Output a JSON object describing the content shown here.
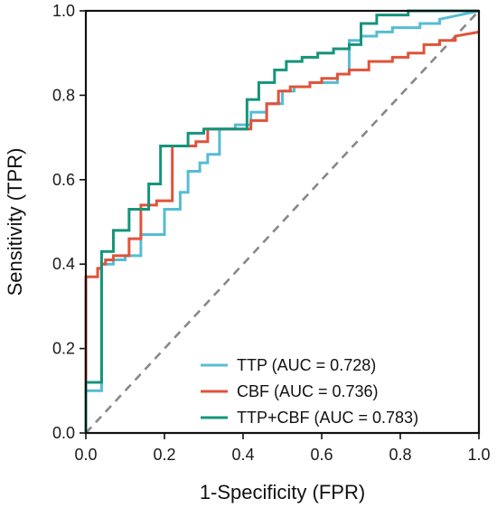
{
  "chart_data": {
    "type": "line",
    "title": "",
    "xlabel": "1-Specificity (FPR)",
    "ylabel": "Sensitivity (TPR)",
    "xlim": [
      0.0,
      1.0
    ],
    "ylim": [
      0.0,
      1.0
    ],
    "x_ticks": [
      "0.0",
      "0.2",
      "0.4",
      "0.6",
      "0.8",
      "1.0"
    ],
    "y_ticks": [
      "0.0",
      "0.2",
      "0.4",
      "0.6",
      "0.8",
      "1.0"
    ],
    "grid": false,
    "legend_position": "bottom-right",
    "reference_line": {
      "x": [
        0.0,
        1.0
      ],
      "y": [
        0.0,
        1.0
      ],
      "color": "#888888",
      "style": "dashed"
    },
    "series": [
      {
        "name": "TTP (AUC = 0.728)",
        "color": "#56bcd6",
        "x": [
          0.0,
          0.0,
          0.04,
          0.04,
          0.07,
          0.07,
          0.1,
          0.1,
          0.14,
          0.14,
          0.2,
          0.2,
          0.24,
          0.24,
          0.26,
          0.26,
          0.29,
          0.29,
          0.31,
          0.31,
          0.34,
          0.34,
          0.38,
          0.38,
          0.42,
          0.42,
          0.46,
          0.46,
          0.5,
          0.5,
          0.53,
          0.53,
          0.57,
          0.57,
          0.64,
          0.64,
          0.67,
          0.67,
          0.7,
          0.7,
          0.74,
          0.74,
          0.78,
          0.78,
          0.85,
          0.85,
          0.9,
          0.9,
          1.0
        ],
        "y": [
          0.0,
          0.1,
          0.1,
          0.4,
          0.4,
          0.41,
          0.41,
          0.42,
          0.42,
          0.47,
          0.47,
          0.53,
          0.53,
          0.57,
          0.57,
          0.62,
          0.62,
          0.64,
          0.64,
          0.66,
          0.66,
          0.72,
          0.72,
          0.73,
          0.73,
          0.76,
          0.76,
          0.78,
          0.78,
          0.81,
          0.81,
          0.82,
          0.82,
          0.83,
          0.83,
          0.85,
          0.85,
          0.93,
          0.93,
          0.94,
          0.94,
          0.95,
          0.95,
          0.96,
          0.96,
          0.97,
          0.97,
          0.98,
          1.0
        ]
      },
      {
        "name": "CBF (AUC = 0.736)",
        "color": "#e0533a",
        "x": [
          0.0,
          0.0,
          0.03,
          0.03,
          0.04,
          0.04,
          0.05,
          0.05,
          0.07,
          0.07,
          0.11,
          0.11,
          0.14,
          0.14,
          0.18,
          0.18,
          0.22,
          0.22,
          0.28,
          0.28,
          0.31,
          0.31,
          0.42,
          0.42,
          0.46,
          0.46,
          0.49,
          0.49,
          0.52,
          0.52,
          0.57,
          0.57,
          0.6,
          0.6,
          0.64,
          0.64,
          0.67,
          0.67,
          0.72,
          0.72,
          0.78,
          0.78,
          0.82,
          0.82,
          0.86,
          0.86,
          0.9,
          0.9,
          0.94,
          0.94,
          1.0
        ],
        "y": [
          0.0,
          0.37,
          0.37,
          0.39,
          0.39,
          0.4,
          0.4,
          0.41,
          0.41,
          0.42,
          0.42,
          0.46,
          0.46,
          0.54,
          0.54,
          0.55,
          0.55,
          0.68,
          0.68,
          0.69,
          0.69,
          0.72,
          0.72,
          0.74,
          0.74,
          0.78,
          0.78,
          0.81,
          0.81,
          0.82,
          0.82,
          0.83,
          0.83,
          0.84,
          0.84,
          0.85,
          0.85,
          0.86,
          0.86,
          0.88,
          0.88,
          0.89,
          0.89,
          0.9,
          0.9,
          0.92,
          0.92,
          0.93,
          0.93,
          0.94,
          0.95
        ]
      },
      {
        "name": "TTP+CBF (AUC = 0.783)",
        "color": "#15947a",
        "x": [
          0.0,
          0.0,
          0.04,
          0.04,
          0.07,
          0.07,
          0.11,
          0.11,
          0.16,
          0.16,
          0.19,
          0.19,
          0.26,
          0.26,
          0.3,
          0.3,
          0.41,
          0.41,
          0.44,
          0.44,
          0.48,
          0.48,
          0.51,
          0.51,
          0.55,
          0.55,
          0.59,
          0.59,
          0.63,
          0.63,
          0.67,
          0.67,
          0.7,
          0.7,
          0.74,
          0.74,
          0.82,
          0.82,
          0.9,
          0.9,
          0.95,
          0.95,
          1.0
        ],
        "y": [
          0.0,
          0.12,
          0.12,
          0.43,
          0.43,
          0.48,
          0.48,
          0.53,
          0.53,
          0.59,
          0.59,
          0.68,
          0.68,
          0.71,
          0.71,
          0.72,
          0.72,
          0.79,
          0.79,
          0.83,
          0.83,
          0.86,
          0.86,
          0.88,
          0.88,
          0.89,
          0.89,
          0.9,
          0.9,
          0.91,
          0.91,
          0.92,
          0.92,
          0.97,
          0.97,
          0.99,
          0.99,
          1.0,
          1.0,
          1.0,
          1.0,
          1.0,
          1.0
        ]
      }
    ]
  }
}
